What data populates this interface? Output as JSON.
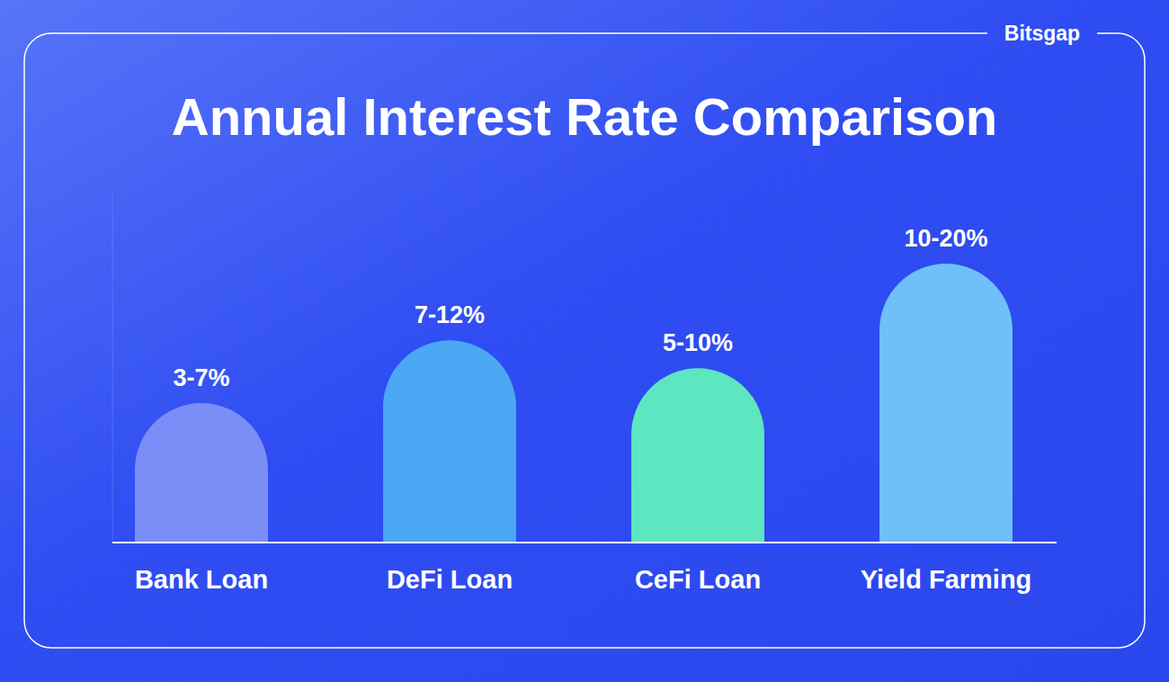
{
  "brand": "Bitsgap",
  "chart_data": {
    "type": "bar",
    "title": "Annual Interest Rate Comparison",
    "categories": [
      "Bank Loan",
      "DeFi Loan",
      "CeFi Loan",
      "Yield Farming"
    ],
    "values": [
      [
        3,
        7
      ],
      [
        7,
        12
      ],
      [
        5,
        10
      ],
      [
        10,
        20
      ]
    ],
    "value_labels": [
      "3-7%",
      "7-12%",
      "5-10%",
      "10-20%"
    ],
    "colors": [
      "#7b8ef8",
      "#4aa8f5",
      "#5ee6c0",
      "#6fbff9"
    ],
    "ylim": [
      -5,
      20
    ],
    "tick_labels": "x",
    "data_labels": true,
    "grid": false
  }
}
